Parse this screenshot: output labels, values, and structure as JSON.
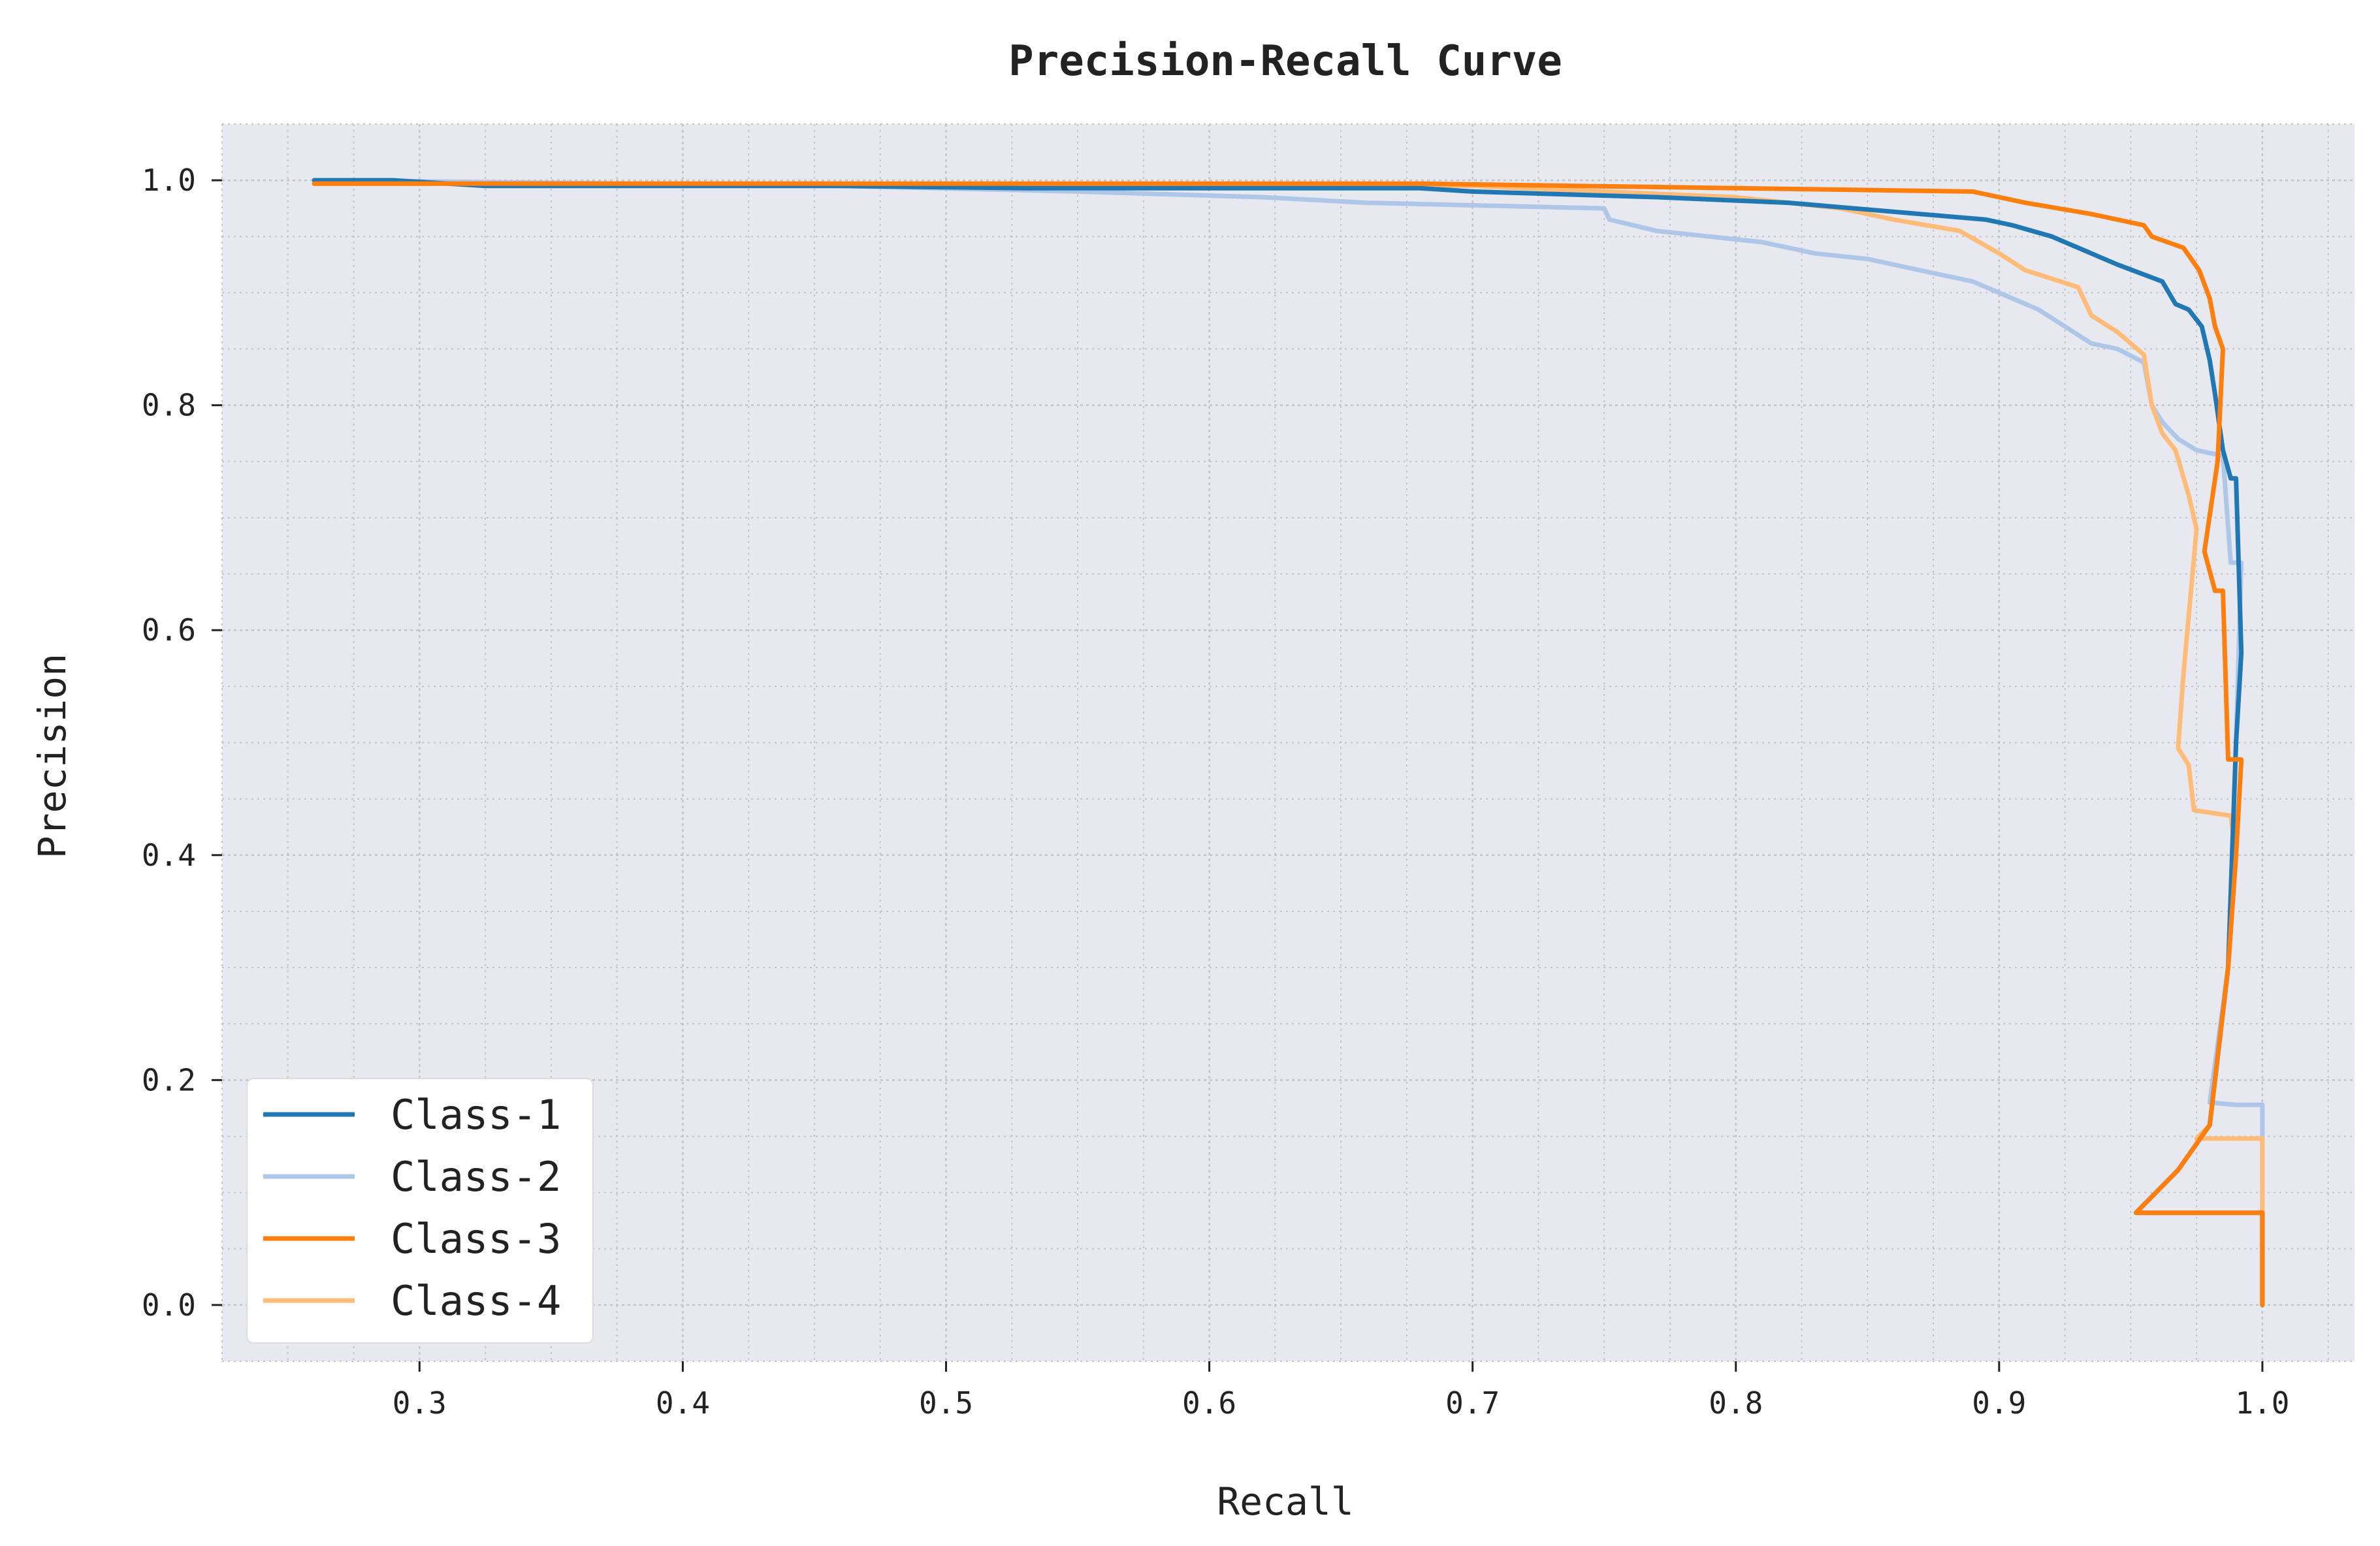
{
  "chart_data": {
    "type": "line",
    "title": "Precision-Recall Curve",
    "xlabel": "Recall",
    "ylabel": "Precision",
    "xlim": [
      0.225,
      1.035
    ],
    "ylim": [
      -0.05,
      1.05
    ],
    "xticks": [
      0.3,
      0.4,
      0.5,
      0.6,
      0.7,
      0.8,
      0.9,
      1.0
    ],
    "xtick_labels": [
      "0.3",
      "0.4",
      "0.5",
      "0.6",
      "0.7",
      "0.8",
      "0.9",
      "1.0"
    ],
    "yticks": [
      0.0,
      0.2,
      0.4,
      0.6,
      0.8,
      1.0
    ],
    "ytick_labels": [
      "0.0",
      "0.2",
      "0.4",
      "0.6",
      "0.8",
      "1.0"
    ],
    "grid": true,
    "legend_position": "lower-left",
    "background_color": "#e8e9f0",
    "grid_color": "#c4c4c4",
    "series": [
      {
        "name": "Class-1",
        "color": "#1f77b4",
        "points": [
          [
            0.26,
            1.0
          ],
          [
            0.29,
            1.0
          ],
          [
            0.325,
            0.995
          ],
          [
            0.46,
            0.995
          ],
          [
            0.53,
            0.993
          ],
          [
            0.68,
            0.993
          ],
          [
            0.7,
            0.99
          ],
          [
            0.77,
            0.985
          ],
          [
            0.82,
            0.98
          ],
          [
            0.845,
            0.975
          ],
          [
            0.87,
            0.97
          ],
          [
            0.895,
            0.965
          ],
          [
            0.905,
            0.96
          ],
          [
            0.92,
            0.95
          ],
          [
            0.93,
            0.94
          ],
          [
            0.945,
            0.925
          ],
          [
            0.962,
            0.91
          ],
          [
            0.967,
            0.89
          ],
          [
            0.972,
            0.885
          ],
          [
            0.977,
            0.87
          ],
          [
            0.98,
            0.84
          ],
          [
            0.982,
            0.81
          ],
          [
            0.985,
            0.76
          ],
          [
            0.988,
            0.735
          ],
          [
            0.99,
            0.735
          ],
          [
            0.992,
            0.58
          ],
          [
            0.99,
            0.5
          ],
          [
            0.987,
            0.3
          ],
          [
            0.98,
            0.16
          ],
          [
            0.968,
            0.12
          ],
          [
            0.952,
            0.082
          ],
          [
            1.0,
            0.082
          ],
          [
            1.0,
            0.0
          ]
        ]
      },
      {
        "name": "Class-2",
        "color": "#aec7e8",
        "points": [
          [
            0.26,
            1.0
          ],
          [
            0.46,
            0.995
          ],
          [
            0.55,
            0.99
          ],
          [
            0.62,
            0.985
          ],
          [
            0.66,
            0.98
          ],
          [
            0.75,
            0.975
          ],
          [
            0.752,
            0.965
          ],
          [
            0.77,
            0.955
          ],
          [
            0.79,
            0.95
          ],
          [
            0.81,
            0.945
          ],
          [
            0.83,
            0.935
          ],
          [
            0.85,
            0.93
          ],
          [
            0.87,
            0.92
          ],
          [
            0.89,
            0.91
          ],
          [
            0.905,
            0.895
          ],
          [
            0.915,
            0.885
          ],
          [
            0.925,
            0.87
          ],
          [
            0.935,
            0.855
          ],
          [
            0.945,
            0.85
          ],
          [
            0.955,
            0.838
          ],
          [
            0.958,
            0.8
          ],
          [
            0.962,
            0.785
          ],
          [
            0.968,
            0.77
          ],
          [
            0.975,
            0.76
          ],
          [
            0.985,
            0.755
          ],
          [
            0.988,
            0.66
          ],
          [
            0.992,
            0.66
          ],
          [
            0.99,
            0.5
          ],
          [
            0.987,
            0.3
          ],
          [
            0.98,
            0.18
          ],
          [
            0.99,
            0.178
          ],
          [
            1.0,
            0.178
          ],
          [
            1.0,
            0.0
          ]
        ]
      },
      {
        "name": "Class-3",
        "color": "#ff7f0e",
        "points": [
          [
            0.26,
            0.997
          ],
          [
            0.68,
            0.997
          ],
          [
            0.89,
            0.99
          ],
          [
            0.9,
            0.985
          ],
          [
            0.91,
            0.98
          ],
          [
            0.935,
            0.97
          ],
          [
            0.955,
            0.96
          ],
          [
            0.958,
            0.95
          ],
          [
            0.97,
            0.94
          ],
          [
            0.976,
            0.92
          ],
          [
            0.98,
            0.895
          ],
          [
            0.982,
            0.87
          ],
          [
            0.985,
            0.85
          ],
          [
            0.983,
            0.75
          ],
          [
            0.978,
            0.67
          ],
          [
            0.982,
            0.635
          ],
          [
            0.985,
            0.635
          ],
          [
            0.987,
            0.485
          ],
          [
            0.992,
            0.485
          ],
          [
            0.99,
            0.4
          ],
          [
            0.987,
            0.3
          ],
          [
            0.98,
            0.16
          ],
          [
            0.968,
            0.12
          ],
          [
            0.952,
            0.082
          ],
          [
            1.0,
            0.082
          ],
          [
            1.0,
            0.0
          ]
        ]
      },
      {
        "name": "Class-4",
        "color": "#ffbb78",
        "points": [
          [
            0.26,
            0.997
          ],
          [
            0.45,
            0.997
          ],
          [
            0.7,
            0.995
          ],
          [
            0.8,
            0.985
          ],
          [
            0.84,
            0.975
          ],
          [
            0.86,
            0.965
          ],
          [
            0.885,
            0.955
          ],
          [
            0.9,
            0.935
          ],
          [
            0.91,
            0.92
          ],
          [
            0.93,
            0.905
          ],
          [
            0.935,
            0.88
          ],
          [
            0.945,
            0.865
          ],
          [
            0.955,
            0.845
          ],
          [
            0.958,
            0.8
          ],
          [
            0.962,
            0.775
          ],
          [
            0.967,
            0.76
          ],
          [
            0.972,
            0.72
          ],
          [
            0.975,
            0.69
          ],
          [
            0.97,
            0.56
          ],
          [
            0.968,
            0.495
          ],
          [
            0.972,
            0.48
          ],
          [
            0.974,
            0.44
          ],
          [
            0.988,
            0.435
          ],
          [
            0.99,
            0.4
          ],
          [
            0.987,
            0.3
          ],
          [
            0.98,
            0.16
          ],
          [
            0.975,
            0.148
          ],
          [
            0.985,
            0.148
          ],
          [
            1.0,
            0.148
          ],
          [
            1.0,
            0.0
          ]
        ]
      }
    ]
  }
}
